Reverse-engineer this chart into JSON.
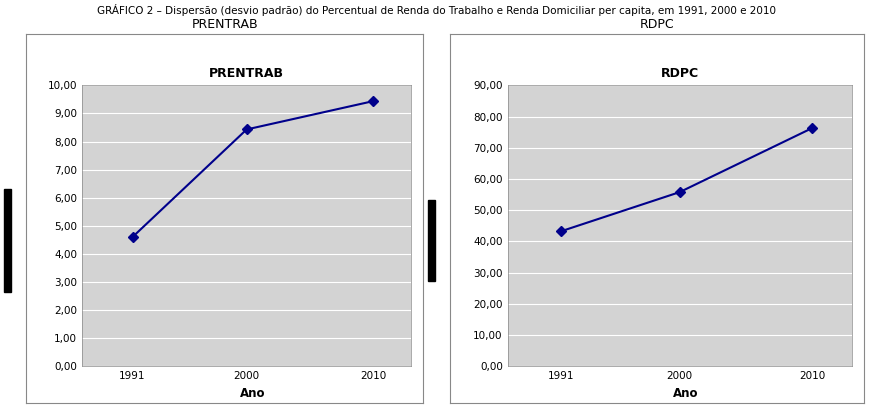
{
  "title": "GRÁFICO 2 – Dispersão (desvio padrão) do Percentual de Renda do Trabalho e Renda Domiciliar per capita, em 1991, 2000 e 2010",
  "panel1_title_outer": "PRENTRAB",
  "panel2_title_outer": "RDPC",
  "panel1_inner_title": "PRENTRAB",
  "panel2_inner_title": "RDPC",
  "xlabel": "Ano",
  "years": [
    1991,
    2000,
    2010
  ],
  "prentrab_values": [
    4.6,
    8.43,
    9.44
  ],
  "rdpc_values": [
    43.2,
    55.8,
    76.3
  ],
  "prentrab_ylim": [
    0.0,
    10.0
  ],
  "prentrab_yticks": [
    0.0,
    1.0,
    2.0,
    3.0,
    4.0,
    5.0,
    6.0,
    7.0,
    8.0,
    9.0,
    10.0
  ],
  "rdpc_ylim": [
    0.0,
    90.0
  ],
  "rdpc_yticks": [
    0.0,
    10.0,
    20.0,
    30.0,
    40.0,
    50.0,
    60.0,
    70.0,
    80.0,
    90.0
  ],
  "line_color": "#00008B",
  "marker_style": "D",
  "marker_size": 5,
  "plot_bg_color": "#D3D3D3",
  "outer_bg_color": "#FFFFFF",
  "panel_border_color": "#888888",
  "title_fontsize": 7.5,
  "outer_title_fontsize": 9,
  "inner_title_fontsize": 9,
  "tick_fontsize": 7.5,
  "xlabel_fontsize": 8.5,
  "xlabel_fontweight": "bold",
  "grid_color": "#FFFFFF",
  "grid_linewidth": 0.8,
  "line_linewidth": 1.5,
  "black_bar_color": "#000000"
}
